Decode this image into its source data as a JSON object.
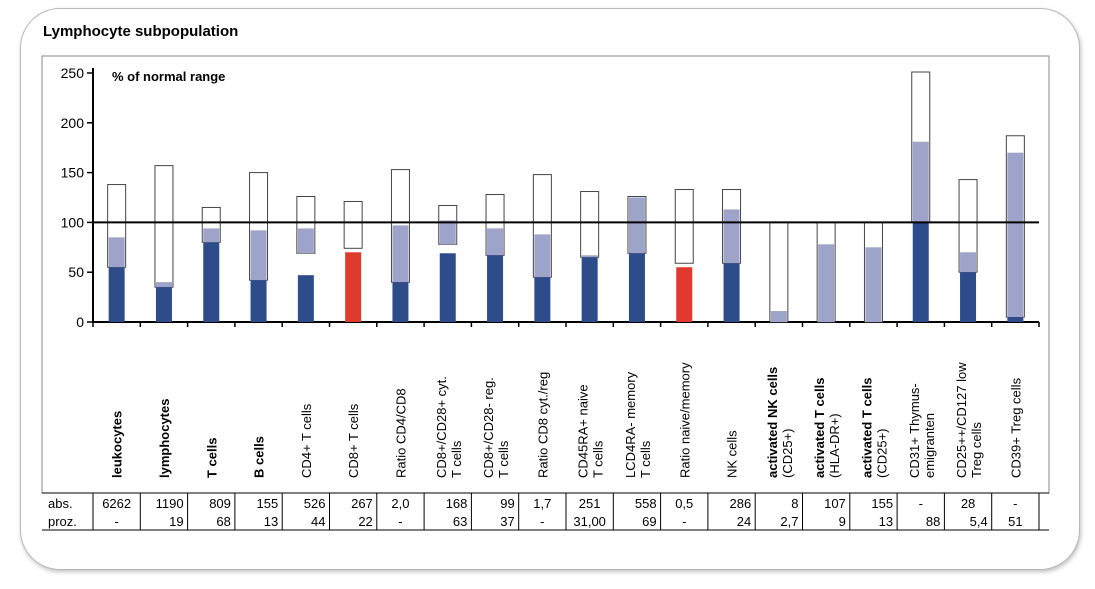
{
  "panel_title": "Lymphocyte subpopulation",
  "chart_data": {
    "type": "bar",
    "title": "% of normal range",
    "ylim": [
      0,
      250
    ],
    "yticks": [
      0,
      50,
      100,
      150,
      200,
      250
    ],
    "reference_line": 100,
    "colors": {
      "value_bar": "#2e4b8a",
      "value_bar_abnormal": "#e03a2f",
      "range_fill": "#9ea3ca",
      "range_outline": "#333333"
    },
    "categories": [
      {
        "label": "leukocytes",
        "sub": "",
        "bold": true,
        "range": [
          55,
          138
        ],
        "fill": [
          55,
          85
        ],
        "value": 55,
        "status": "normal"
      },
      {
        "label": "lymphocytes",
        "sub": "",
        "bold": true,
        "range": [
          35,
          157
        ],
        "fill": [
          35,
          40
        ],
        "value": 35,
        "status": "normal"
      },
      {
        "label": "T cells",
        "sub": "",
        "bold": true,
        "range": [
          80,
          115
        ],
        "fill": [
          80,
          94
        ],
        "value": 80,
        "status": "normal"
      },
      {
        "label": "B cells",
        "sub": "",
        "bold": true,
        "range": [
          42,
          150
        ],
        "fill": [
          42,
          92
        ],
        "value": 42,
        "status": "normal"
      },
      {
        "label": "CD4+ T cells",
        "sub": "",
        "bold": false,
        "range": [
          69,
          126
        ],
        "fill": [
          69,
          94
        ],
        "value": 47,
        "status": "normal"
      },
      {
        "label": "CD8+ T cells",
        "sub": "",
        "bold": false,
        "range": [
          74,
          121
        ],
        "fill": null,
        "value": 70,
        "status": "abnormal"
      },
      {
        "label": "Ratio CD4/CD8",
        "sub": "",
        "bold": false,
        "range": [
          40,
          153
        ],
        "fill": [
          40,
          97
        ],
        "value": 40,
        "status": "normal"
      },
      {
        "label": "CD8+/CD28+ cyt.",
        "sub": "T cells",
        "bold": false,
        "range": [
          78,
          117
        ],
        "fill": [
          78,
          102
        ],
        "value": 69,
        "status": "normal"
      },
      {
        "label": "CD8+/CD28- reg.",
        "sub": "T cells",
        "bold": false,
        "range": [
          67,
          128
        ],
        "fill": [
          67,
          94
        ],
        "value": 67,
        "status": "normal"
      },
      {
        "label": "Ratio CD8 cyt./reg",
        "sub": "",
        "bold": false,
        "range": [
          45,
          148
        ],
        "fill": [
          45,
          88
        ],
        "value": 45,
        "status": "normal"
      },
      {
        "label": "CD45RA+ naive",
        "sub": "T cells",
        "bold": false,
        "range": [
          65,
          131
        ],
        "fill": [
          65,
          67
        ],
        "value": 65,
        "status": "normal"
      },
      {
        "label": "LCD4RA- memory",
        "sub": "T cells",
        "bold": false,
        "range": [
          69,
          126
        ],
        "fill": [
          69,
          125
        ],
        "value": 69,
        "status": "normal"
      },
      {
        "label": "Ratio naive/memory",
        "sub": "",
        "bold": false,
        "range": [
          59,
          133
        ],
        "fill": null,
        "value": 55,
        "status": "abnormal"
      },
      {
        "label": "NK cells",
        "sub": "",
        "bold": false,
        "range": [
          59,
          133
        ],
        "fill": [
          59,
          113
        ],
        "value": 59,
        "status": "normal"
      },
      {
        "label": "activated NK cells",
        "sub": "(CD25+)",
        "bold": true,
        "range": [
          0,
          100
        ],
        "fill": [
          0,
          11
        ],
        "value": null,
        "status": "normal"
      },
      {
        "label": "activated T cells",
        "sub": "(HLA-DR+)",
        "bold": true,
        "range": [
          0,
          100
        ],
        "fill": [
          0,
          78
        ],
        "value": null,
        "status": "normal"
      },
      {
        "label": "activated T cells",
        "sub": "(CD25+)",
        "bold": true,
        "range": [
          0,
          100
        ],
        "fill": [
          0,
          75
        ],
        "value": null,
        "status": "normal"
      },
      {
        "label": "CD31+ Thymus-",
        "sub": "emigranten",
        "bold": false,
        "range": [
          100,
          251
        ],
        "fill": [
          100,
          181
        ],
        "value": 100,
        "status": "normal"
      },
      {
        "label": "CD25++/CD127 low",
        "sub": "Treg cells",
        "bold": false,
        "range": [
          50,
          143
        ],
        "fill": [
          50,
          70
        ],
        "value": 50,
        "status": "normal"
      },
      {
        "label": "CD39+ Treg cells",
        "sub": "",
        "bold": false,
        "range": [
          5,
          187
        ],
        "fill": [
          5,
          170
        ],
        "value": 5,
        "status": "normal"
      }
    ]
  },
  "table": {
    "row_labels": [
      "abs.",
      "proz."
    ],
    "abs": [
      "6262",
      "1190",
      "809",
      "155",
      "526",
      "267",
      "2,0",
      "168",
      "99",
      "1,7",
      "251",
      "558",
      "0,5",
      "286",
      "8",
      "107",
      "155",
      "-",
      "28",
      "-"
    ],
    "proz": [
      "-",
      "19",
      "68",
      "13",
      "44",
      "22",
      "-",
      "63",
      "37",
      "-",
      "31,00",
      "69",
      "-",
      "24",
      "2,7",
      "9",
      "13",
      "88",
      "5,4",
      "51"
    ],
    "abs_align": [
      "c",
      "r",
      "r",
      "r",
      "r",
      "r",
      "c",
      "r",
      "r",
      "c",
      "c",
      "r",
      "c",
      "r",
      "r",
      "r",
      "r",
      "c",
      "c",
      "c"
    ],
    "proz_align": [
      "c",
      "r",
      "r",
      "r",
      "r",
      "r",
      "c",
      "r",
      "r",
      "c",
      "c",
      "r",
      "c",
      "r",
      "r",
      "r",
      "r",
      "r",
      "r",
      "c"
    ]
  }
}
